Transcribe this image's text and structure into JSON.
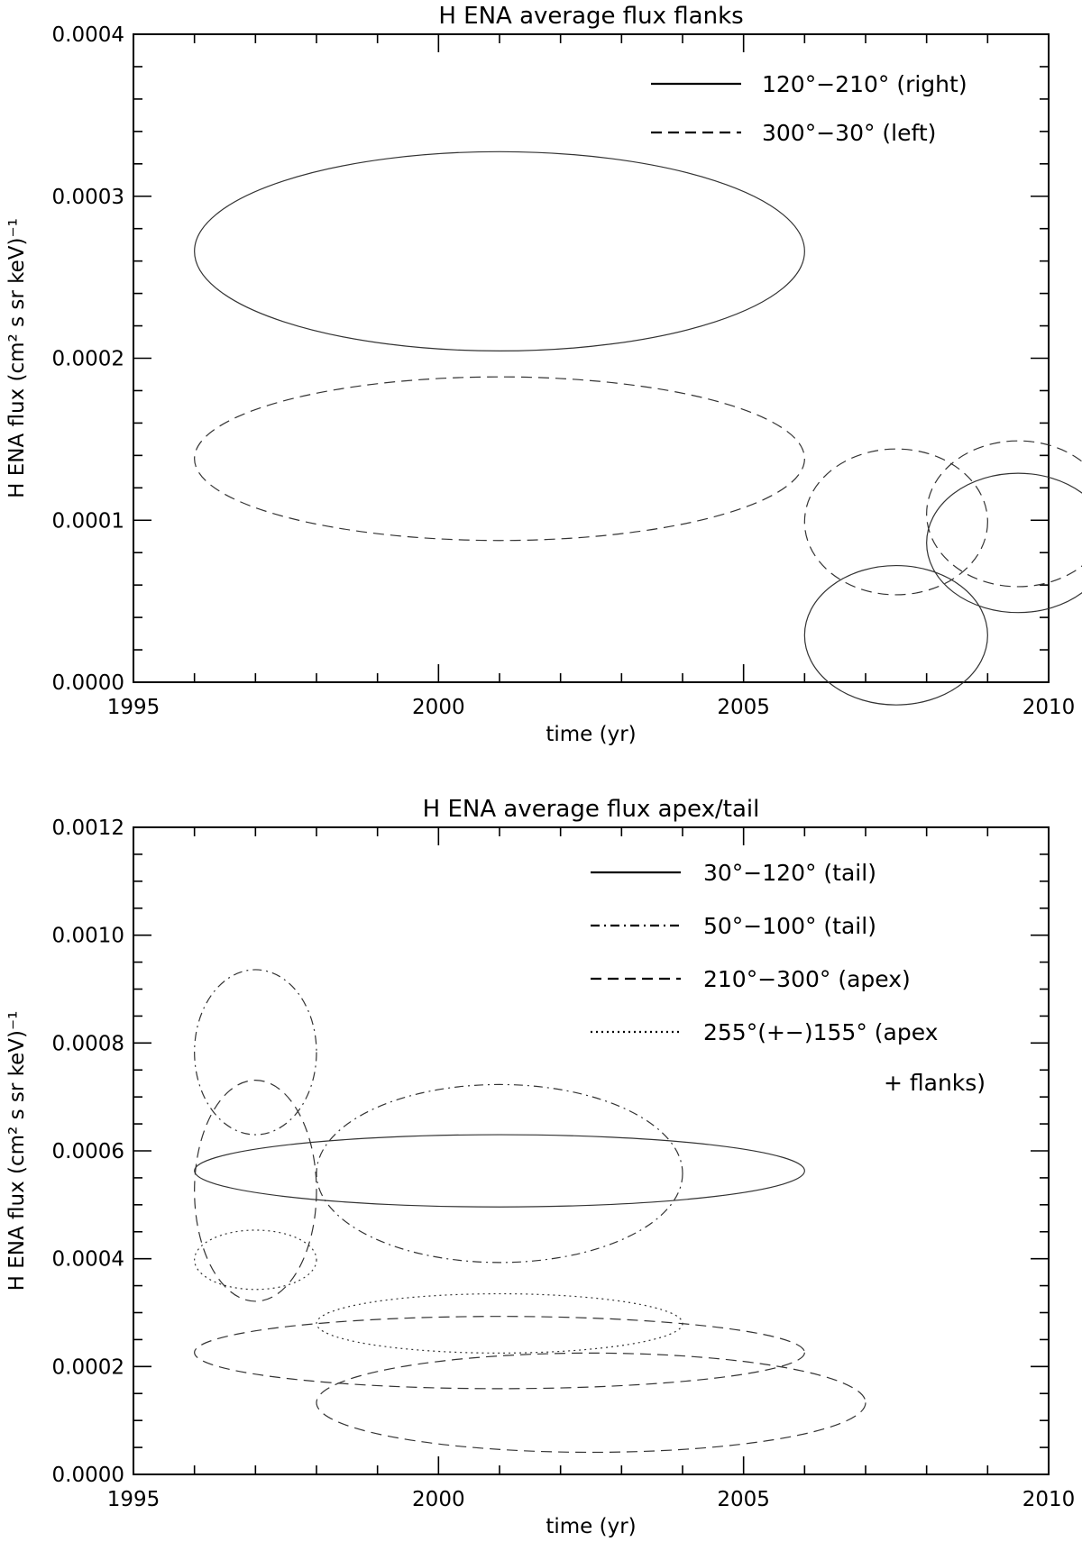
{
  "chart_data": [
    {
      "type": "scatter",
      "title": "H ENA average flux flanks",
      "xlabel": "time (yr)",
      "ylabel": "H ENA flux (cm² s sr keV)⁻¹",
      "xlim": [
        1995,
        2010
      ],
      "ylim": [
        0.0,
        0.0004
      ],
      "x_ticks": [
        "1995",
        "2000",
        "2005",
        "2010"
      ],
      "y_ticks": [
        "0.0000",
        "0.0001",
        "0.0002",
        "0.0003",
        "0.0004"
      ],
      "legend_position": "top-right",
      "legend": [
        {
          "label": "120°−210°   (right)",
          "style": "solid"
        },
        {
          "label": "300°−30°    (left)",
          "style": "dashed"
        }
      ],
      "series": [
        {
          "style": "solid",
          "ellipses": [
            {
              "cx": 2001.0,
              "cy": 0.000266,
              "rx": 5.0,
              "ry": 6.15e-05
            },
            {
              "cx": 2007.5,
              "cy": 2.9e-05,
              "rx": 1.5,
              "ry": 4.3e-05
            },
            {
              "cx": 2009.5,
              "cy": 8.6e-05,
              "rx": 1.5,
              "ry": 4.3e-05
            }
          ]
        },
        {
          "style": "dashed",
          "ellipses": [
            {
              "cx": 2001.0,
              "cy": 0.000138,
              "rx": 5.0,
              "ry": 5.05e-05
            },
            {
              "cx": 2007.5,
              "cy": 9.9e-05,
              "rx": 1.5,
              "ry": 4.5e-05
            },
            {
              "cx": 2009.5,
              "cy": 0.000104,
              "rx": 1.5,
              "ry": 4.5e-05
            }
          ]
        }
      ]
    },
    {
      "type": "scatter",
      "title": "H ENA average flux apex/tail",
      "xlabel": "time (yr)",
      "ylabel": "H ENA flux (cm² s sr keV)⁻¹",
      "xlim": [
        1995,
        2010
      ],
      "ylim": [
        0.0,
        0.0012
      ],
      "x_ticks": [
        "1995",
        "2000",
        "2005",
        "2010"
      ],
      "y_ticks": [
        "0.0000",
        "0.0002",
        "0.0004",
        "0.0006",
        "0.0008",
        "0.0010",
        "0.0012"
      ],
      "legend_position": "top-right",
      "legend": [
        {
          "label": "30°−120°    (tail)",
          "style": "solid"
        },
        {
          "label": "50°−100°     (tail)",
          "style": "dashdot"
        },
        {
          "label": "210°−300°  (apex)",
          "style": "dashed"
        },
        {
          "label": "255°(+−)155° (apex",
          "label2": "+ flanks)",
          "style": "dotted"
        }
      ],
      "series": [
        {
          "style": "solid",
          "ellipses": [
            {
              "cx": 2001.0,
              "cy": 0.000563,
              "rx": 5.0,
              "ry": 6.7e-05
            }
          ]
        },
        {
          "style": "dashdot",
          "ellipses": [
            {
              "cx": 1997.0,
              "cy": 0.000783,
              "rx": 1.0,
              "ry": 0.000153
            },
            {
              "cx": 2001.0,
              "cy": 0.000558,
              "rx": 3.0,
              "ry": 0.000165
            }
          ]
        },
        {
          "style": "dashed",
          "ellipses": [
            {
              "cx": 1997.0,
              "cy": 0.000526,
              "rx": 1.0,
              "ry": 0.000205
            },
            {
              "cx": 2001.0,
              "cy": 0.000226,
              "rx": 5.0,
              "ry": 6.7e-05
            },
            {
              "cx": 2002.5,
              "cy": 0.000133,
              "rx": 4.5,
              "ry": 9.2e-05
            }
          ]
        },
        {
          "style": "dotted",
          "ellipses": [
            {
              "cx": 1997.0,
              "cy": 0.000398,
              "rx": 1.0,
              "ry": 5.5e-05
            },
            {
              "cx": 2001.0,
              "cy": 0.00028,
              "rx": 3.0,
              "ry": 5.5e-05
            }
          ]
        }
      ]
    }
  ]
}
